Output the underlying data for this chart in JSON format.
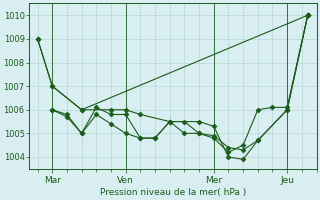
{
  "background_color": "#d8eef0",
  "grid_color": "#b8d8d8",
  "line_color": "#1a5c1a",
  "title": "Pression niveau de la mer( hPa )",
  "ylim": [
    1003.5,
    1010.5
  ],
  "yticks": [
    1004,
    1005,
    1006,
    1007,
    1008,
    1009,
    1010
  ],
  "xlim": [
    -0.3,
    9.5
  ],
  "day_positions": [
    0.5,
    3.0,
    6.0,
    8.5
  ],
  "day_labels": [
    "Mar",
    "Ven",
    "Mer",
    "Jeu"
  ],
  "vline_positions": [
    0.5,
    3.0,
    6.0,
    8.5
  ],
  "series": [
    {
      "x": [
        0,
        0.5,
        1.5,
        2.5,
        3.0,
        3.5,
        4.5,
        5.5,
        6.0,
        6.5,
        7.0,
        7.5,
        8.5,
        9.2
      ],
      "y": [
        1009.0,
        1007.0,
        1006.0,
        1006.0,
        1006.0,
        1005.8,
        1005.5,
        1005.5,
        1005.3,
        1004.0,
        1003.9,
        1004.7,
        1006.0,
        1010.0
      ]
    },
    {
      "x": [
        0.5,
        1.0,
        1.5,
        2.0,
        2.5,
        3.0,
        3.5,
        4.0,
        4.5,
        5.0,
        5.5,
        6.0,
        6.5,
        7.0,
        7.5,
        8.5,
        9.2
      ],
      "y": [
        1006.0,
        1005.8,
        1005.0,
        1006.1,
        1005.8,
        1005.8,
        1004.8,
        1004.8,
        1005.5,
        1005.5,
        1005.0,
        1004.9,
        1004.4,
        1004.3,
        1004.7,
        1006.0,
        1010.0
      ]
    },
    {
      "x": [
        0.5,
        1.0,
        1.5,
        2.0,
        2.5,
        3.0,
        3.5,
        4.0,
        4.5,
        5.0,
        5.5,
        6.0,
        6.5,
        7.0,
        7.5,
        8.0,
        8.5,
        9.2
      ],
      "y": [
        1006.0,
        1005.7,
        1005.0,
        1005.8,
        1005.4,
        1005.0,
        1004.8,
        1004.8,
        1005.5,
        1005.0,
        1005.0,
        1004.8,
        1004.2,
        1004.5,
        1006.0,
        1006.1,
        1006.1,
        1010.0
      ]
    },
    {
      "x": [
        0,
        0.5,
        1.5,
        9.2
      ],
      "y": [
        1009.0,
        1007.0,
        1006.0,
        1010.0
      ]
    }
  ]
}
